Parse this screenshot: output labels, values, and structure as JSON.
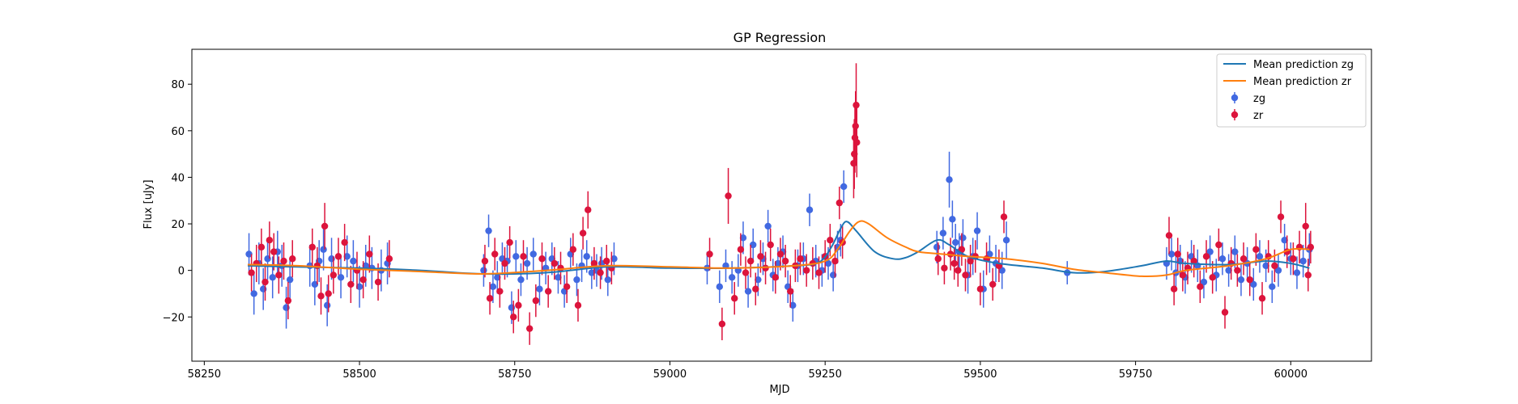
{
  "chart_data": {
    "type": "scatter",
    "title": "GP Regression",
    "xlabel": "MJD",
    "ylabel": "Flux [uJy]",
    "xlim": [
      58230,
      60130
    ],
    "ylim": [
      -39,
      95
    ],
    "xticks": [
      58250,
      58500,
      58750,
      59000,
      59250,
      59500,
      59750,
      60000
    ],
    "yticks": [
      -20,
      0,
      20,
      40,
      60,
      80
    ],
    "legend_position": "upper right",
    "legend": [
      "Mean prediction zg",
      "Mean prediction zr",
      "zg",
      "zr"
    ],
    "colors": {
      "zg": "#4169e1",
      "zr": "#dc143c",
      "mean_zg": "#1f77b4",
      "mean_zr": "#ff7f0e"
    },
    "series": [
      {
        "name": "Mean prediction zg",
        "kind": "line",
        "color": "#1f77b4",
        "x": [
          58320,
          58400,
          58500,
          58600,
          58700,
          58800,
          58900,
          59000,
          59100,
          59200,
          59240,
          59260,
          59275,
          59285,
          59300,
          59330,
          59360,
          59380,
          59400,
          59430,
          59450,
          59480,
          59530,
          59600,
          59650,
          59700,
          59760,
          59800,
          59830,
          59900,
          59960,
          60000,
          60030
        ],
        "y": [
          2,
          1.5,
          1,
          0,
          -1.5,
          -1,
          1.5,
          1,
          1,
          2,
          3.5,
          10,
          18,
          21,
          17,
          8,
          5,
          5.5,
          8,
          13,
          11,
          6,
          3,
          1,
          -1,
          -0.5,
          2,
          4,
          3,
          2.5,
          4,
          3,
          1
        ]
      },
      {
        "name": "Mean prediction zr",
        "kind": "line",
        "color": "#ff7f0e",
        "x": [
          58320,
          58400,
          58500,
          58600,
          58700,
          58800,
          58900,
          59000,
          59100,
          59200,
          59250,
          59270,
          59290,
          59305,
          59320,
          59350,
          59380,
          59400,
          59440,
          59480,
          59540,
          59600,
          59650,
          59700,
          59760,
          59800,
          59830,
          59900,
          59960,
          60000,
          60030
        ],
        "y": [
          2.5,
          2,
          0.5,
          -0.5,
          -1.5,
          0,
          2,
          1.5,
          1,
          2,
          4,
          9,
          17,
          21,
          20,
          14,
          10,
          8,
          7,
          6,
          5,
          3,
          0.5,
          -1,
          -2.5,
          -2,
          0,
          2,
          5,
          9,
          9
        ]
      },
      {
        "name": "zg",
        "kind": "scatter",
        "color": "#4169e1",
        "x": [
          58322,
          58330,
          58338,
          58345,
          58352,
          58360,
          58368,
          58375,
          58382,
          58388,
          58420,
          58428,
          58435,
          58442,
          58448,
          58455,
          58470,
          58480,
          58490,
          58500,
          58510,
          58520,
          58535,
          58545,
          58700,
          58708,
          58715,
          58722,
          58730,
          58738,
          58745,
          58752,
          58760,
          58770,
          58780,
          58790,
          58800,
          58810,
          58820,
          58830,
          58840,
          58850,
          58858,
          58866,
          58874,
          58882,
          58890,
          58900,
          58910,
          59060,
          59080,
          59090,
          59100,
          59110,
          59118,
          59126,
          59134,
          59142,
          59150,
          59158,
          59166,
          59174,
          59182,
          59190,
          59198,
          59206,
          59215,
          59225,
          59235,
          59245,
          59255,
          59263,
          59270,
          59275,
          59280,
          59430,
          59440,
          59450,
          59455,
          59460,
          59466,
          59472,
          59480,
          59488,
          59495,
          59505,
          59515,
          59525,
          59535,
          59542,
          59640,
          59800,
          59808,
          59815,
          59822,
          59830,
          59840,
          59850,
          59860,
          59870,
          59880,
          59890,
          59900,
          59910,
          59920,
          59930,
          59940,
          59950,
          59960,
          59970,
          59980,
          59990,
          60000,
          60010,
          60020,
          60030
        ],
        "y": [
          7,
          -10,
          3,
          -8,
          5,
          -3,
          8,
          2,
          -16,
          -4,
          2,
          -6,
          4,
          9,
          -15,
          5,
          -3,
          6,
          4,
          -7,
          2,
          1,
          0,
          3,
          0,
          17,
          -7,
          -3,
          5,
          4,
          -16,
          6,
          -4,
          3,
          7,
          -8,
          1,
          5,
          -3,
          -9,
          7,
          -4,
          2,
          6,
          -1,
          0,
          3,
          -4,
          5,
          1,
          -7,
          2,
          -3,
          0,
          14,
          -9,
          11,
          -4,
          5,
          19,
          -2,
          3,
          8,
          -7,
          -15,
          2,
          5,
          26,
          4,
          0,
          3,
          -2,
          10,
          13,
          36,
          10,
          16,
          39,
          22,
          12,
          8,
          14,
          -2,
          6,
          17,
          -8,
          7,
          3,
          0,
          13,
          -1,
          3,
          7,
          -1,
          4,
          -3,
          6,
          2,
          -5,
          8,
          -2,
          5,
          0,
          8,
          -4,
          3,
          -6,
          6,
          2,
          -7,
          0,
          13,
          5,
          -1,
          4,
          9
        ],
        "err": [
          9,
          9,
          9,
          9,
          9,
          9,
          9,
          9,
          9,
          9,
          9,
          9,
          9,
          9,
          9,
          9,
          9,
          9,
          9,
          9,
          9,
          9,
          9,
          9,
          7,
          7,
          7,
          7,
          7,
          7,
          7,
          7,
          7,
          7,
          7,
          7,
          7,
          7,
          7,
          7,
          7,
          7,
          7,
          7,
          7,
          7,
          7,
          7,
          7,
          7,
          7,
          7,
          7,
          7,
          7,
          7,
          7,
          7,
          7,
          7,
          7,
          7,
          7,
          7,
          7,
          7,
          7,
          7,
          7,
          7,
          7,
          7,
          7,
          7,
          7,
          7,
          7,
          12,
          8,
          8,
          8,
          8,
          8,
          8,
          8,
          8,
          8,
          8,
          8,
          8,
          5,
          7,
          7,
          7,
          7,
          7,
          7,
          7,
          7,
          7,
          7,
          7,
          7,
          7,
          7,
          7,
          7,
          7,
          7,
          7,
          7,
          7,
          7,
          7,
          7,
          7
        ]
      },
      {
        "name": "zr",
        "kind": "scatter",
        "color": "#dc143c",
        "x": [
          58326,
          58334,
          58342,
          58348,
          58355,
          58362,
          58370,
          58378,
          58385,
          58392,
          58424,
          58432,
          58438,
          58444,
          58450,
          58458,
          58466,
          58476,
          58486,
          58496,
          58506,
          58516,
          58530,
          58548,
          58702,
          58710,
          58718,
          58726,
          58734,
          58742,
          58748,
          58756,
          58764,
          58774,
          58784,
          58794,
          58804,
          58814,
          58824,
          58834,
          58844,
          58852,
          58860,
          58868,
          58878,
          58888,
          58898,
          58906,
          59064,
          59084,
          59094,
          59104,
          59114,
          59122,
          59130,
          59138,
          59146,
          59154,
          59162,
          59170,
          59178,
          59186,
          59194,
          59202,
          59210,
          59220,
          59230,
          59240,
          59250,
          59258,
          59266,
          59273,
          59278,
          59296,
          59297,
          59298,
          59299,
          59300,
          59301,
          59432,
          59442,
          59452,
          59458,
          59464,
          59470,
          59476,
          59484,
          59492,
          59500,
          59510,
          59520,
          59530,
          59538,
          59804,
          59812,
          59818,
          59826,
          59834,
          59844,
          59854,
          59864,
          59874,
          59884,
          59894,
          59904,
          59914,
          59924,
          59934,
          59944,
          59954,
          59964,
          59974,
          59984,
          59994,
          60004,
          60014,
          60024,
          60028,
          60032
        ],
        "y": [
          -1,
          3,
          10,
          -5,
          13,
          8,
          -2,
          4,
          -13,
          5,
          10,
          2,
          -11,
          19,
          -10,
          -2,
          6,
          12,
          -6,
          0,
          -4,
          7,
          -5,
          5,
          4,
          -12,
          7,
          -9,
          3,
          12,
          -20,
          -15,
          6,
          -25,
          -13,
          5,
          -9,
          3,
          1,
          -7,
          9,
          -15,
          16,
          26,
          3,
          -1,
          4,
          1,
          7,
          -23,
          32,
          -12,
          9,
          -1,
          4,
          -8,
          6,
          1,
          11,
          -3,
          7,
          4,
          -9,
          2,
          5,
          0,
          3,
          -1,
          6,
          13,
          4,
          29,
          12,
          46,
          50,
          57,
          62,
          71,
          55,
          5,
          1,
          7,
          3,
          0,
          9,
          -2,
          4,
          6,
          -8,
          5,
          -6,
          2,
          23,
          15,
          -8,
          7,
          -2,
          1,
          4,
          -7,
          6,
          -3,
          11,
          -18,
          3,
          0,
          5,
          -4,
          9,
          -12,
          6,
          2,
          23,
          8,
          5,
          10,
          19,
          -2,
          10
        ],
        "err": [
          8,
          8,
          8,
          8,
          8,
          8,
          8,
          8,
          8,
          8,
          8,
          8,
          8,
          10,
          8,
          8,
          8,
          8,
          8,
          8,
          8,
          8,
          8,
          8,
          7,
          7,
          7,
          7,
          7,
          7,
          7,
          7,
          7,
          7,
          7,
          7,
          7,
          7,
          7,
          7,
          7,
          7,
          7,
          8,
          7,
          7,
          7,
          7,
          7,
          7,
          12,
          7,
          7,
          7,
          7,
          7,
          7,
          7,
          7,
          7,
          7,
          7,
          7,
          7,
          7,
          7,
          7,
          7,
          7,
          7,
          7,
          7,
          7,
          15,
          15,
          15,
          15,
          18,
          15,
          7,
          7,
          7,
          7,
          7,
          7,
          7,
          7,
          7,
          7,
          7,
          7,
          7,
          7,
          8,
          7,
          7,
          7,
          7,
          7,
          7,
          7,
          7,
          7,
          7,
          7,
          7,
          7,
          7,
          7,
          7,
          7,
          7,
          7,
          7,
          7,
          7,
          10,
          7,
          7
        ]
      }
    ]
  }
}
